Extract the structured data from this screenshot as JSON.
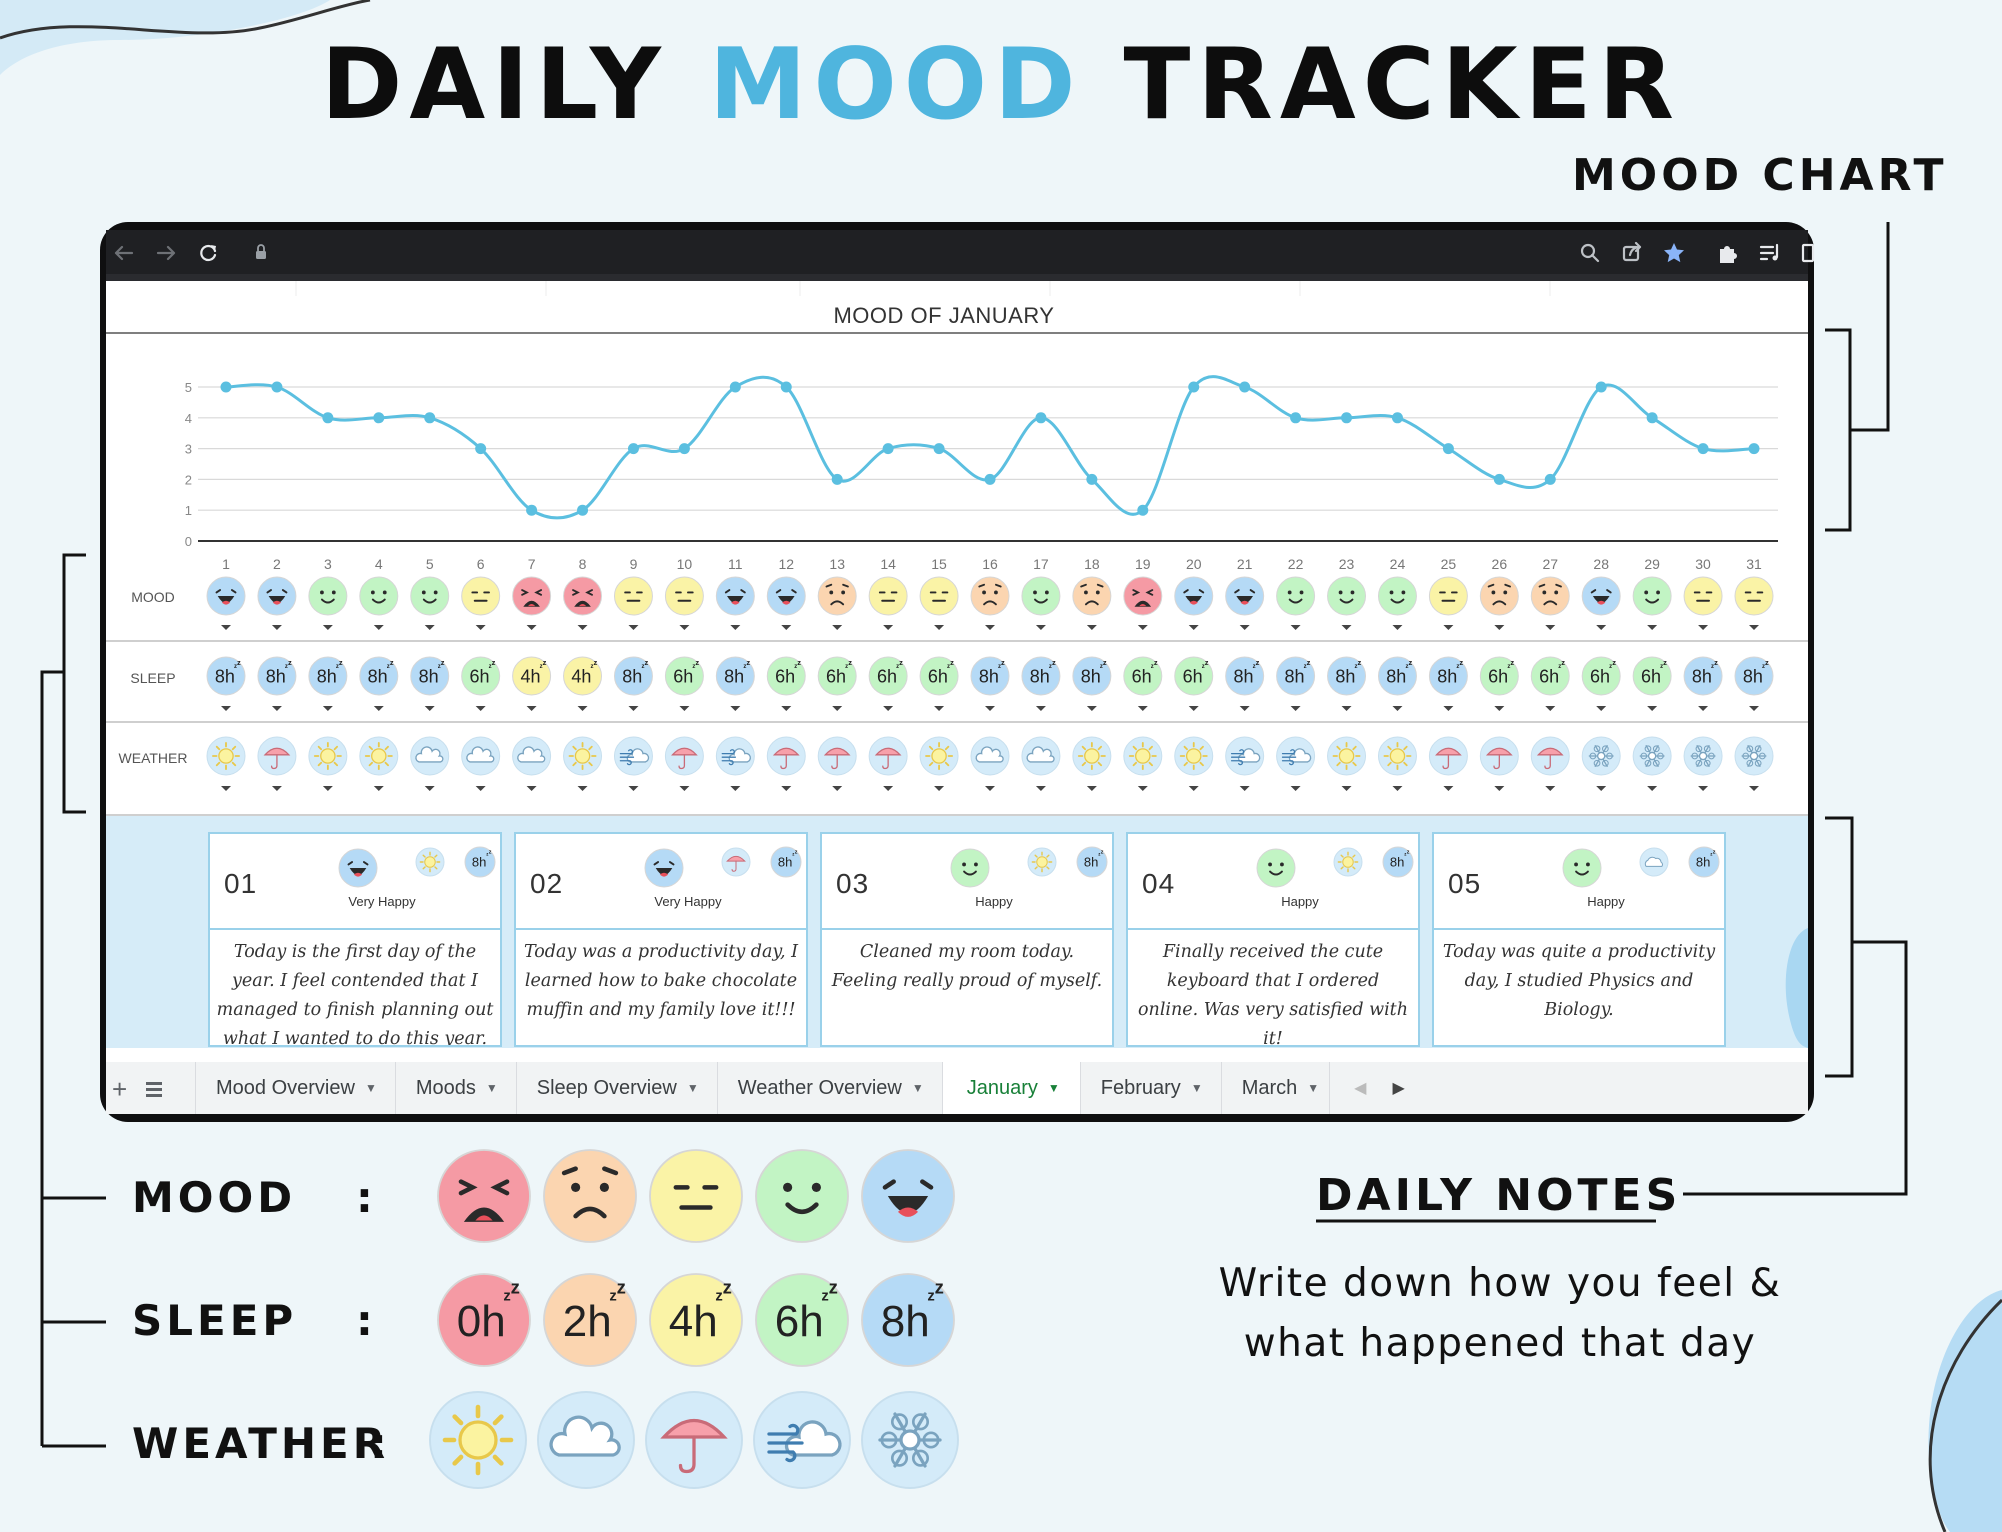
{
  "header": {
    "title_part1": "DAILY ",
    "title_part2": "MOOD",
    "title_part3": " TRACKER",
    "accent_color": "#4fb5de"
  },
  "callouts": {
    "mood_chart": "MOOD CHART",
    "daily_notes": "DAILY NOTES",
    "daily_notes_desc_line1": "Write down how you feel &",
    "daily_notes_desc_line2": "what happened that day"
  },
  "legend": {
    "mood_label": "MOOD",
    "sleep_label": "SLEEP",
    "weather_label": "WEATHER",
    "colon": ":",
    "moods": [
      "very-sad",
      "sad",
      "neutral",
      "happy",
      "very-happy"
    ],
    "sleep_hours": [
      "0h",
      "2h",
      "4h",
      "6h",
      "8h"
    ],
    "weather": [
      "sunny",
      "cloudy",
      "rainy",
      "windy",
      "snowy"
    ]
  },
  "browser": {
    "toolbar_icons": [
      "back-icon",
      "forward-icon",
      "reload-icon",
      "lock-icon",
      "zoom-icon",
      "share-icon",
      "star-icon",
      "extensions-icon",
      "reading-list-icon",
      "side-panel-icon"
    ]
  },
  "sheet": {
    "row_labels": {
      "mood": "MOOD",
      "sleep": "SLEEP",
      "weather": "WEATHER"
    },
    "days": [
      "1",
      "2",
      "3",
      "4",
      "5",
      "6",
      "7",
      "8",
      "9",
      "10",
      "11",
      "12",
      "13",
      "14",
      "15",
      "16",
      "17",
      "18",
      "19",
      "20",
      "21",
      "22",
      "23",
      "24",
      "25",
      "26",
      "27",
      "28",
      "29",
      "30",
      "31"
    ],
    "sleep": [
      "8h",
      "8h",
      "8h",
      "8h",
      "8h",
      "6h",
      "4h",
      "4h",
      "8h",
      "6h",
      "8h",
      "6h",
      "6h",
      "6h",
      "6h",
      "8h",
      "8h",
      "8h",
      "6h",
      "6h",
      "8h",
      "8h",
      "8h",
      "8h",
      "8h",
      "6h",
      "6h",
      "6h",
      "6h",
      "8h",
      "8h"
    ],
    "weather": [
      "sunny",
      "rainy",
      "sunny",
      "sunny",
      "cloudy",
      "cloudy",
      "cloudy",
      "sunny",
      "windy",
      "rainy",
      "windy",
      "rainy",
      "rainy",
      "rainy",
      "sunny",
      "cloudy",
      "cloudy",
      "sunny",
      "sunny",
      "sunny",
      "windy",
      "windy",
      "sunny",
      "sunny",
      "rainy",
      "rainy",
      "rainy",
      "snowy",
      "snowy",
      "snowy",
      "snowy"
    ],
    "notes": [
      {
        "num": "01",
        "mood_label": "Very Happy",
        "mood": 5,
        "weather": "sunny",
        "sleep": "8h",
        "text": "Today is the first day of the year. I feel contended that I managed to finish planning out what I wanted to do this year. Feeling"
      },
      {
        "num": "02",
        "mood_label": "Very Happy",
        "mood": 5,
        "weather": "rainy",
        "sleep": "8h",
        "text": "Today was a productivity day, I learned how to bake chocolate muffin and my family love it!!!"
      },
      {
        "num": "03",
        "mood_label": "Happy",
        "mood": 4,
        "weather": "sunny",
        "sleep": "8h",
        "text": "Cleaned my room today. Feeling really proud of myself."
      },
      {
        "num": "04",
        "mood_label": "Happy",
        "mood": 4,
        "weather": "sunny",
        "sleep": "8h",
        "text": "Finally received the cute keyboard that I ordered online. Was very satisfied with it!"
      },
      {
        "num": "05",
        "mood_label": "Happy",
        "mood": 4,
        "weather": "cloudy",
        "sleep": "8h",
        "text": "Today was quite a productivity day, I studied Physics and Biology."
      }
    ],
    "tabs": [
      {
        "label": "Mood Overview",
        "active": false
      },
      {
        "label": "Moods",
        "active": false
      },
      {
        "label": "Sleep Overview",
        "active": false
      },
      {
        "label": "Weather Overview",
        "active": false
      },
      {
        "label": "January",
        "active": true
      },
      {
        "label": "February",
        "active": false
      },
      {
        "label": "March",
        "active": false
      }
    ]
  },
  "chart_data": {
    "type": "line",
    "title": "MOOD OF JANUARY",
    "x": [
      1,
      2,
      3,
      4,
      5,
      6,
      7,
      8,
      9,
      10,
      11,
      12,
      13,
      14,
      15,
      16,
      17,
      18,
      19,
      20,
      21,
      22,
      23,
      24,
      25,
      26,
      27,
      28,
      29,
      30,
      31
    ],
    "values": [
      5,
      5,
      4,
      4,
      4,
      3,
      1,
      1,
      3,
      3,
      5,
      5,
      2,
      3,
      3,
      2,
      4,
      2,
      1,
      5,
      5,
      4,
      4,
      4,
      3,
      2,
      2,
      5,
      4,
      3,
      3
    ],
    "ylim": [
      0,
      5
    ],
    "yticks": [
      0,
      1,
      2,
      3,
      4,
      5
    ],
    "grid": true,
    "line_color": "#5bbfe0"
  },
  "colors": {
    "mood": {
      "1": "#f59aa4",
      "2": "#fbd5b0",
      "3": "#faf3a6",
      "4": "#c2f4c4",
      "5": "#b5daf6"
    },
    "sleep": {
      "0h": "#f59aa4",
      "2h": "#fbd5b0",
      "4h": "#faf3a6",
      "6h": "#c2f4c4",
      "8h": "#b5daf6"
    },
    "weather_bg": "#d4ebf9"
  }
}
